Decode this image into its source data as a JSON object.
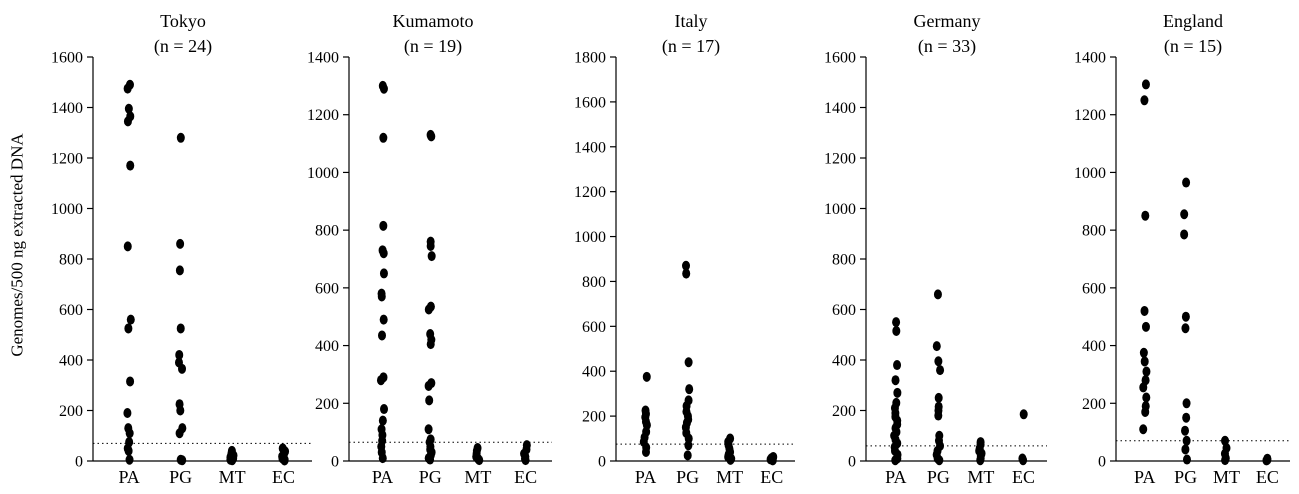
{
  "figure": {
    "ylabel": "Genomes/500 ng extracted DNA"
  },
  "chart_data": [
    {
      "type": "scatter",
      "title": "Tokyo",
      "subtitle": "(n = 24)",
      "categories": [
        "PA",
        "PG",
        "MT",
        "EC"
      ],
      "ylim": [
        0,
        1600
      ],
      "yticks": [
        0,
        200,
        400,
        600,
        800,
        1000,
        1200,
        1400,
        1600
      ],
      "cutoff": 70,
      "points": {
        "PA": [
          1490,
          1475,
          1395,
          1365,
          1345,
          1170,
          850,
          560,
          525,
          315,
          190,
          130,
          110,
          75,
          50,
          40,
          5
        ],
        "PG": [
          1280,
          860,
          755,
          525,
          420,
          390,
          365,
          225,
          200,
          130,
          110,
          5,
          3
        ],
        "MT": [
          40,
          30,
          22,
          15,
          10,
          5,
          3
        ],
        "EC": [
          50,
          38,
          28,
          18,
          10,
          5,
          2
        ]
      }
    },
    {
      "type": "scatter",
      "title": "Kumamoto",
      "subtitle": "(n = 19)",
      "categories": [
        "PA",
        "PG",
        "MT",
        "EC"
      ],
      "ylim": [
        0,
        1400
      ],
      "yticks": [
        0,
        200,
        400,
        600,
        800,
        1000,
        1200,
        1400
      ],
      "cutoff": 65,
      "points": {
        "PA": [
          1300,
          1290,
          1120,
          815,
          730,
          720,
          650,
          580,
          570,
          490,
          435,
          290,
          280,
          180,
          140,
          110,
          90,
          70,
          50,
          30,
          10
        ],
        "PG": [
          1130,
          1125,
          760,
          745,
          710,
          535,
          525,
          440,
          420,
          405,
          270,
          260,
          210,
          110,
          75,
          65,
          50,
          40,
          30,
          20,
          10,
          5
        ],
        "MT": [
          45,
          35,
          25,
          15,
          8,
          3
        ],
        "EC": [
          55,
          40,
          25,
          15,
          8,
          3
        ]
      }
    },
    {
      "type": "scatter",
      "title": "Italy",
      "subtitle": "(n = 17)",
      "categories": [
        "PA",
        "PG",
        "MT",
        "EC"
      ],
      "ylim": [
        0,
        1800
      ],
      "yticks": [
        0,
        200,
        400,
        600,
        800,
        1000,
        1200,
        1400,
        1600,
        1800
      ],
      "cutoff": 75,
      "points": {
        "PA": [
          375,
          225,
          210,
          195,
          175,
          160,
          130,
          105,
          85,
          60,
          40
        ],
        "PG": [
          870,
          835,
          440,
          320,
          270,
          245,
          220,
          200,
          185,
          170,
          150,
          125,
          100,
          70,
          25
        ],
        "MT": [
          100,
          85,
          70,
          55,
          40,
          28,
          18,
          10,
          5
        ],
        "EC": [
          18,
          12,
          7,
          3
        ]
      }
    },
    {
      "type": "scatter",
      "title": "Germany",
      "subtitle": "(n = 33)",
      "categories": [
        "PA",
        "PG",
        "MT",
        "EC"
      ],
      "ylim": [
        0,
        1600
      ],
      "yticks": [
        0,
        200,
        400,
        600,
        800,
        1000,
        1200,
        1400,
        1600
      ],
      "cutoff": 60,
      "points": {
        "PA": [
          550,
          515,
          380,
          320,
          270,
          230,
          210,
          190,
          175,
          160,
          145,
          130,
          115,
          100,
          85,
          70,
          55,
          40,
          25,
          10,
          3
        ],
        "PG": [
          660,
          455,
          395,
          360,
          250,
          215,
          200,
          180,
          100,
          80,
          60,
          40,
          25,
          10,
          3
        ],
        "MT": [
          75,
          65,
          50,
          40,
          30,
          20,
          10,
          3
        ],
        "EC": [
          185,
          10,
          3
        ]
      }
    },
    {
      "type": "scatter",
      "title": "England",
      "subtitle": "(n = 15)",
      "categories": [
        "PA",
        "PG",
        "MT",
        "EC"
      ],
      "ylim": [
        0,
        1400
      ],
      "yticks": [
        0,
        200,
        400,
        600,
        800,
        1000,
        1200,
        1400
      ],
      "cutoff": 70,
      "points": {
        "PA": [
          1305,
          1250,
          850,
          520,
          465,
          375,
          345,
          310,
          280,
          255,
          220,
          190,
          170,
          110
        ],
        "PG": [
          965,
          855,
          785,
          500,
          460,
          200,
          150,
          105,
          70,
          40,
          5
        ],
        "MT": [
          70,
          45,
          25,
          10,
          3
        ],
        "EC": [
          8,
          4,
          2
        ]
      }
    }
  ]
}
